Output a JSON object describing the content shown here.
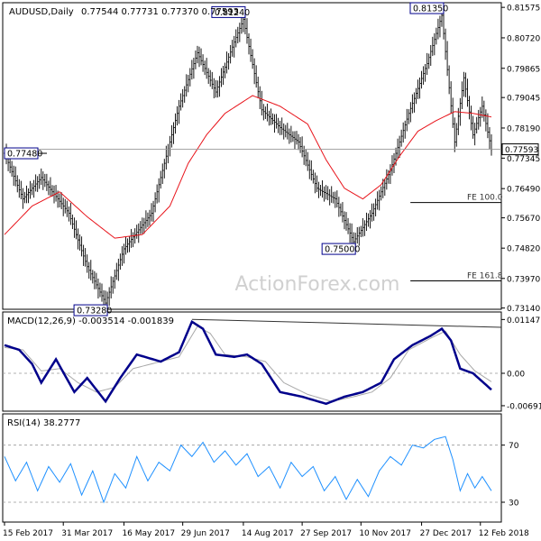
{
  "header": {
    "symbol": "AUDUSD,Daily",
    "ohlc": "0.77544 0.77731 0.77370 0.77593"
  },
  "watermark": "ActionForex.com",
  "colors": {
    "candle": "#000000",
    "ma": "#e8141b",
    "macd_line": "#00008b",
    "macd_signal": "#a8a8a8",
    "rsi": "#1e90ff",
    "grid": "#d8d8d8",
    "watermark": "#d0d0d0",
    "label_border": "#00008b"
  },
  "x_axis": {
    "labels": [
      "15 Feb 2017",
      "31 Mar 2017",
      "16 May 2017",
      "29 Jun 2017",
      "14 Aug 2017",
      "27 Sep 2017",
      "10 Nov 2017",
      "27 Dec 2017",
      "12 Feb 2018"
    ],
    "label_index": [
      0,
      32,
      65,
      97,
      130,
      162,
      194,
      227,
      259
    ],
    "count": 266
  },
  "chart_data": [
    {
      "type": "ohlc",
      "name": "price",
      "ylim": [
        0.7313,
        0.8168
      ],
      "y_ticks": [
        0.81575,
        0.8072,
        0.79865,
        0.79045,
        0.7819,
        0.77345,
        0.7649,
        0.7567,
        0.7482,
        0.7397,
        0.7314
      ],
      "y_tick_labels": [
        "0.81575",
        "0.80720",
        "0.79865",
        "0.79045",
        "0.78190",
        "0.77345",
        "0.76490",
        "0.75670",
        "0.74820",
        "0.73970",
        "0.73140"
      ],
      "current_price": 0.77593,
      "current_label": "0.77593",
      "anchors": [
        [
          0,
          0.7748
        ],
        [
          10,
          0.762
        ],
        [
          20,
          0.768
        ],
        [
          35,
          0.758
        ],
        [
          45,
          0.743
        ],
        [
          55,
          0.7328
        ],
        [
          65,
          0.748
        ],
        [
          80,
          0.758
        ],
        [
          95,
          0.788
        ],
        [
          105,
          0.803
        ],
        [
          115,
          0.792
        ],
        [
          125,
          0.806
        ],
        [
          130,
          0.8124
        ],
        [
          140,
          0.787
        ],
        [
          150,
          0.782
        ],
        [
          160,
          0.778
        ],
        [
          170,
          0.765
        ],
        [
          180,
          0.762
        ],
        [
          190,
          0.75
        ],
        [
          200,
          0.758
        ],
        [
          210,
          0.77
        ],
        [
          220,
          0.786
        ],
        [
          230,
          0.8
        ],
        [
          238,
          0.8135
        ],
        [
          245,
          0.778
        ],
        [
          250,
          0.796
        ],
        [
          255,
          0.78
        ],
        [
          260,
          0.788
        ],
        [
          265,
          0.7759
        ]
      ],
      "annotations": [
        {
          "text": "0.81240",
          "index": 130,
          "value": 0.8124,
          "pos": "above-left"
        },
        {
          "text": "0.81350",
          "index": 238,
          "value": 0.8135,
          "pos": "above-left"
        },
        {
          "text": "0.77480",
          "index": 0,
          "value": 0.7748,
          "pos": "left"
        },
        {
          "text": "0.75000",
          "index": 190,
          "value": 0.75,
          "pos": "below-left"
        },
        {
          "text": "0.73280",
          "index": 55,
          "value": 0.7328,
          "pos": "below-left"
        }
      ],
      "fib_levels": [
        {
          "text": "FE 100.0",
          "value": 0.761,
          "from_index": 216
        },
        {
          "text": "FE 161.8",
          "value": 0.739,
          "from_index": 216
        }
      ],
      "moving_average": {
        "anchors": [
          [
            0,
            0.752
          ],
          [
            15,
            0.76
          ],
          [
            30,
            0.764
          ],
          [
            45,
            0.757
          ],
          [
            60,
            0.751
          ],
          [
            75,
            0.752
          ],
          [
            90,
            0.76
          ],
          [
            100,
            0.772
          ],
          [
            110,
            0.78
          ],
          [
            120,
            0.786
          ],
          [
            135,
            0.791
          ],
          [
            150,
            0.788
          ],
          [
            165,
            0.783
          ],
          [
            175,
            0.773
          ],
          [
            185,
            0.765
          ],
          [
            195,
            0.762
          ],
          [
            205,
            0.766
          ],
          [
            215,
            0.774
          ],
          [
            225,
            0.781
          ],
          [
            235,
            0.784
          ],
          [
            245,
            0.7865
          ],
          [
            255,
            0.786
          ],
          [
            265,
            0.785
          ]
        ]
      }
    },
    {
      "type": "line",
      "name": "macd",
      "label": "MACD(12,26,9) -0.003514 -0.001839",
      "ylim": [
        -0.0075,
        0.0125
      ],
      "y_ticks": [
        0.011471,
        0.0,
        -0.006913
      ],
      "y_tick_labels": [
        "0.011471",
        "0.00",
        "-0.006913"
      ],
      "zero_label": "0.00",
      "macd_anchors": [
        [
          0,
          0.006
        ],
        [
          8,
          0.005
        ],
        [
          15,
          0.002
        ],
        [
          20,
          -0.002
        ],
        [
          28,
          0.003
        ],
        [
          38,
          -0.004
        ],
        [
          45,
          -0.001
        ],
        [
          55,
          -0.006
        ],
        [
          63,
          -0.001
        ],
        [
          72,
          0.004
        ],
        [
          85,
          0.0025
        ],
        [
          95,
          0.0045
        ],
        [
          102,
          0.011
        ],
        [
          108,
          0.0095
        ],
        [
          115,
          0.004
        ],
        [
          125,
          0.0035
        ],
        [
          132,
          0.004
        ],
        [
          140,
          0.002
        ],
        [
          150,
          -0.004
        ],
        [
          162,
          -0.005
        ],
        [
          175,
          -0.0065
        ],
        [
          185,
          -0.005
        ],
        [
          195,
          -0.004
        ],
        [
          205,
          -0.002
        ],
        [
          212,
          0.003
        ],
        [
          222,
          0.006
        ],
        [
          232,
          0.008
        ],
        [
          238,
          0.0095
        ],
        [
          243,
          0.007
        ],
        [
          248,
          0.001
        ],
        [
          255,
          0.0
        ],
        [
          265,
          -0.0035
        ]
      ],
      "signal_anchors": [
        [
          0,
          0.0055
        ],
        [
          10,
          0.005
        ],
        [
          20,
          0.0005
        ],
        [
          30,
          0.001
        ],
        [
          40,
          -0.002
        ],
        [
          50,
          -0.004
        ],
        [
          60,
          -0.003
        ],
        [
          70,
          0.001
        ],
        [
          85,
          0.0025
        ],
        [
          95,
          0.0035
        ],
        [
          105,
          0.01
        ],
        [
          112,
          0.0085
        ],
        [
          120,
          0.004
        ],
        [
          132,
          0.0035
        ],
        [
          142,
          0.0025
        ],
        [
          152,
          -0.002
        ],
        [
          165,
          -0.0045
        ],
        [
          178,
          -0.006
        ],
        [
          190,
          -0.005
        ],
        [
          200,
          -0.004
        ],
        [
          210,
          -0.001
        ],
        [
          220,
          0.005
        ],
        [
          232,
          0.0075
        ],
        [
          240,
          0.009
        ],
        [
          248,
          0.004
        ],
        [
          256,
          0.0005
        ],
        [
          265,
          -0.0018
        ]
      ],
      "trendline": {
        "from": [
          102,
          0.0115
        ],
        "to": [
          265,
          0.0098
        ]
      }
    },
    {
      "type": "line",
      "name": "rsi",
      "label": "RSI(14) 38.2777",
      "ylim": [
        18,
        90
      ],
      "y_ticks": [
        70,
        30
      ],
      "y_tick_labels": [
        "70",
        "30"
      ],
      "anchors": [
        [
          0,
          62
        ],
        [
          6,
          45
        ],
        [
          12,
          58
        ],
        [
          18,
          38
        ],
        [
          24,
          55
        ],
        [
          30,
          44
        ],
        [
          36,
          57
        ],
        [
          42,
          35
        ],
        [
          48,
          52
        ],
        [
          54,
          30
        ],
        [
          60,
          50
        ],
        [
          66,
          40
        ],
        [
          72,
          62
        ],
        [
          78,
          45
        ],
        [
          84,
          58
        ],
        [
          90,
          52
        ],
        [
          96,
          70
        ],
        [
          102,
          62
        ],
        [
          108,
          72
        ],
        [
          114,
          58
        ],
        [
          120,
          66
        ],
        [
          126,
          56
        ],
        [
          132,
          64
        ],
        [
          138,
          48
        ],
        [
          144,
          55
        ],
        [
          150,
          40
        ],
        [
          156,
          58
        ],
        [
          162,
          48
        ],
        [
          168,
          55
        ],
        [
          174,
          38
        ],
        [
          180,
          48
        ],
        [
          186,
          32
        ],
        [
          192,
          46
        ],
        [
          198,
          34
        ],
        [
          204,
          52
        ],
        [
          210,
          62
        ],
        [
          216,
          56
        ],
        [
          222,
          70
        ],
        [
          228,
          68
        ],
        [
          234,
          74
        ],
        [
          240,
          76
        ],
        [
          244,
          60
        ],
        [
          248,
          38
        ],
        [
          252,
          50
        ],
        [
          256,
          40
        ],
        [
          260,
          48
        ],
        [
          265,
          38
        ]
      ]
    }
  ]
}
